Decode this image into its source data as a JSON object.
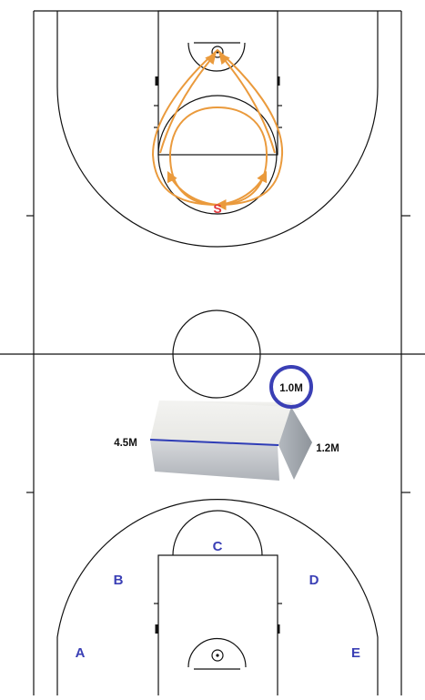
{
  "court": {
    "line_color": "#111111",
    "background": "#ffffff"
  },
  "top_half": {
    "start_marker": "S",
    "start_marker_color": "#e0343a",
    "path_color": "#ea9a3c"
  },
  "obstacle": {
    "length_label": "4.5M",
    "height_label": "1.2M",
    "width_label": "1.0M",
    "highlight_color": "#3a3fb5",
    "edge_highlight_color": "#2f3db6"
  },
  "bottom_half": {
    "positions": [
      {
        "id": "A",
        "label": "A"
      },
      {
        "id": "B",
        "label": "B"
      },
      {
        "id": "C",
        "label": "C"
      },
      {
        "id": "D",
        "label": "D"
      },
      {
        "id": "E",
        "label": "E"
      }
    ],
    "position_color": "#3a3fb5"
  }
}
